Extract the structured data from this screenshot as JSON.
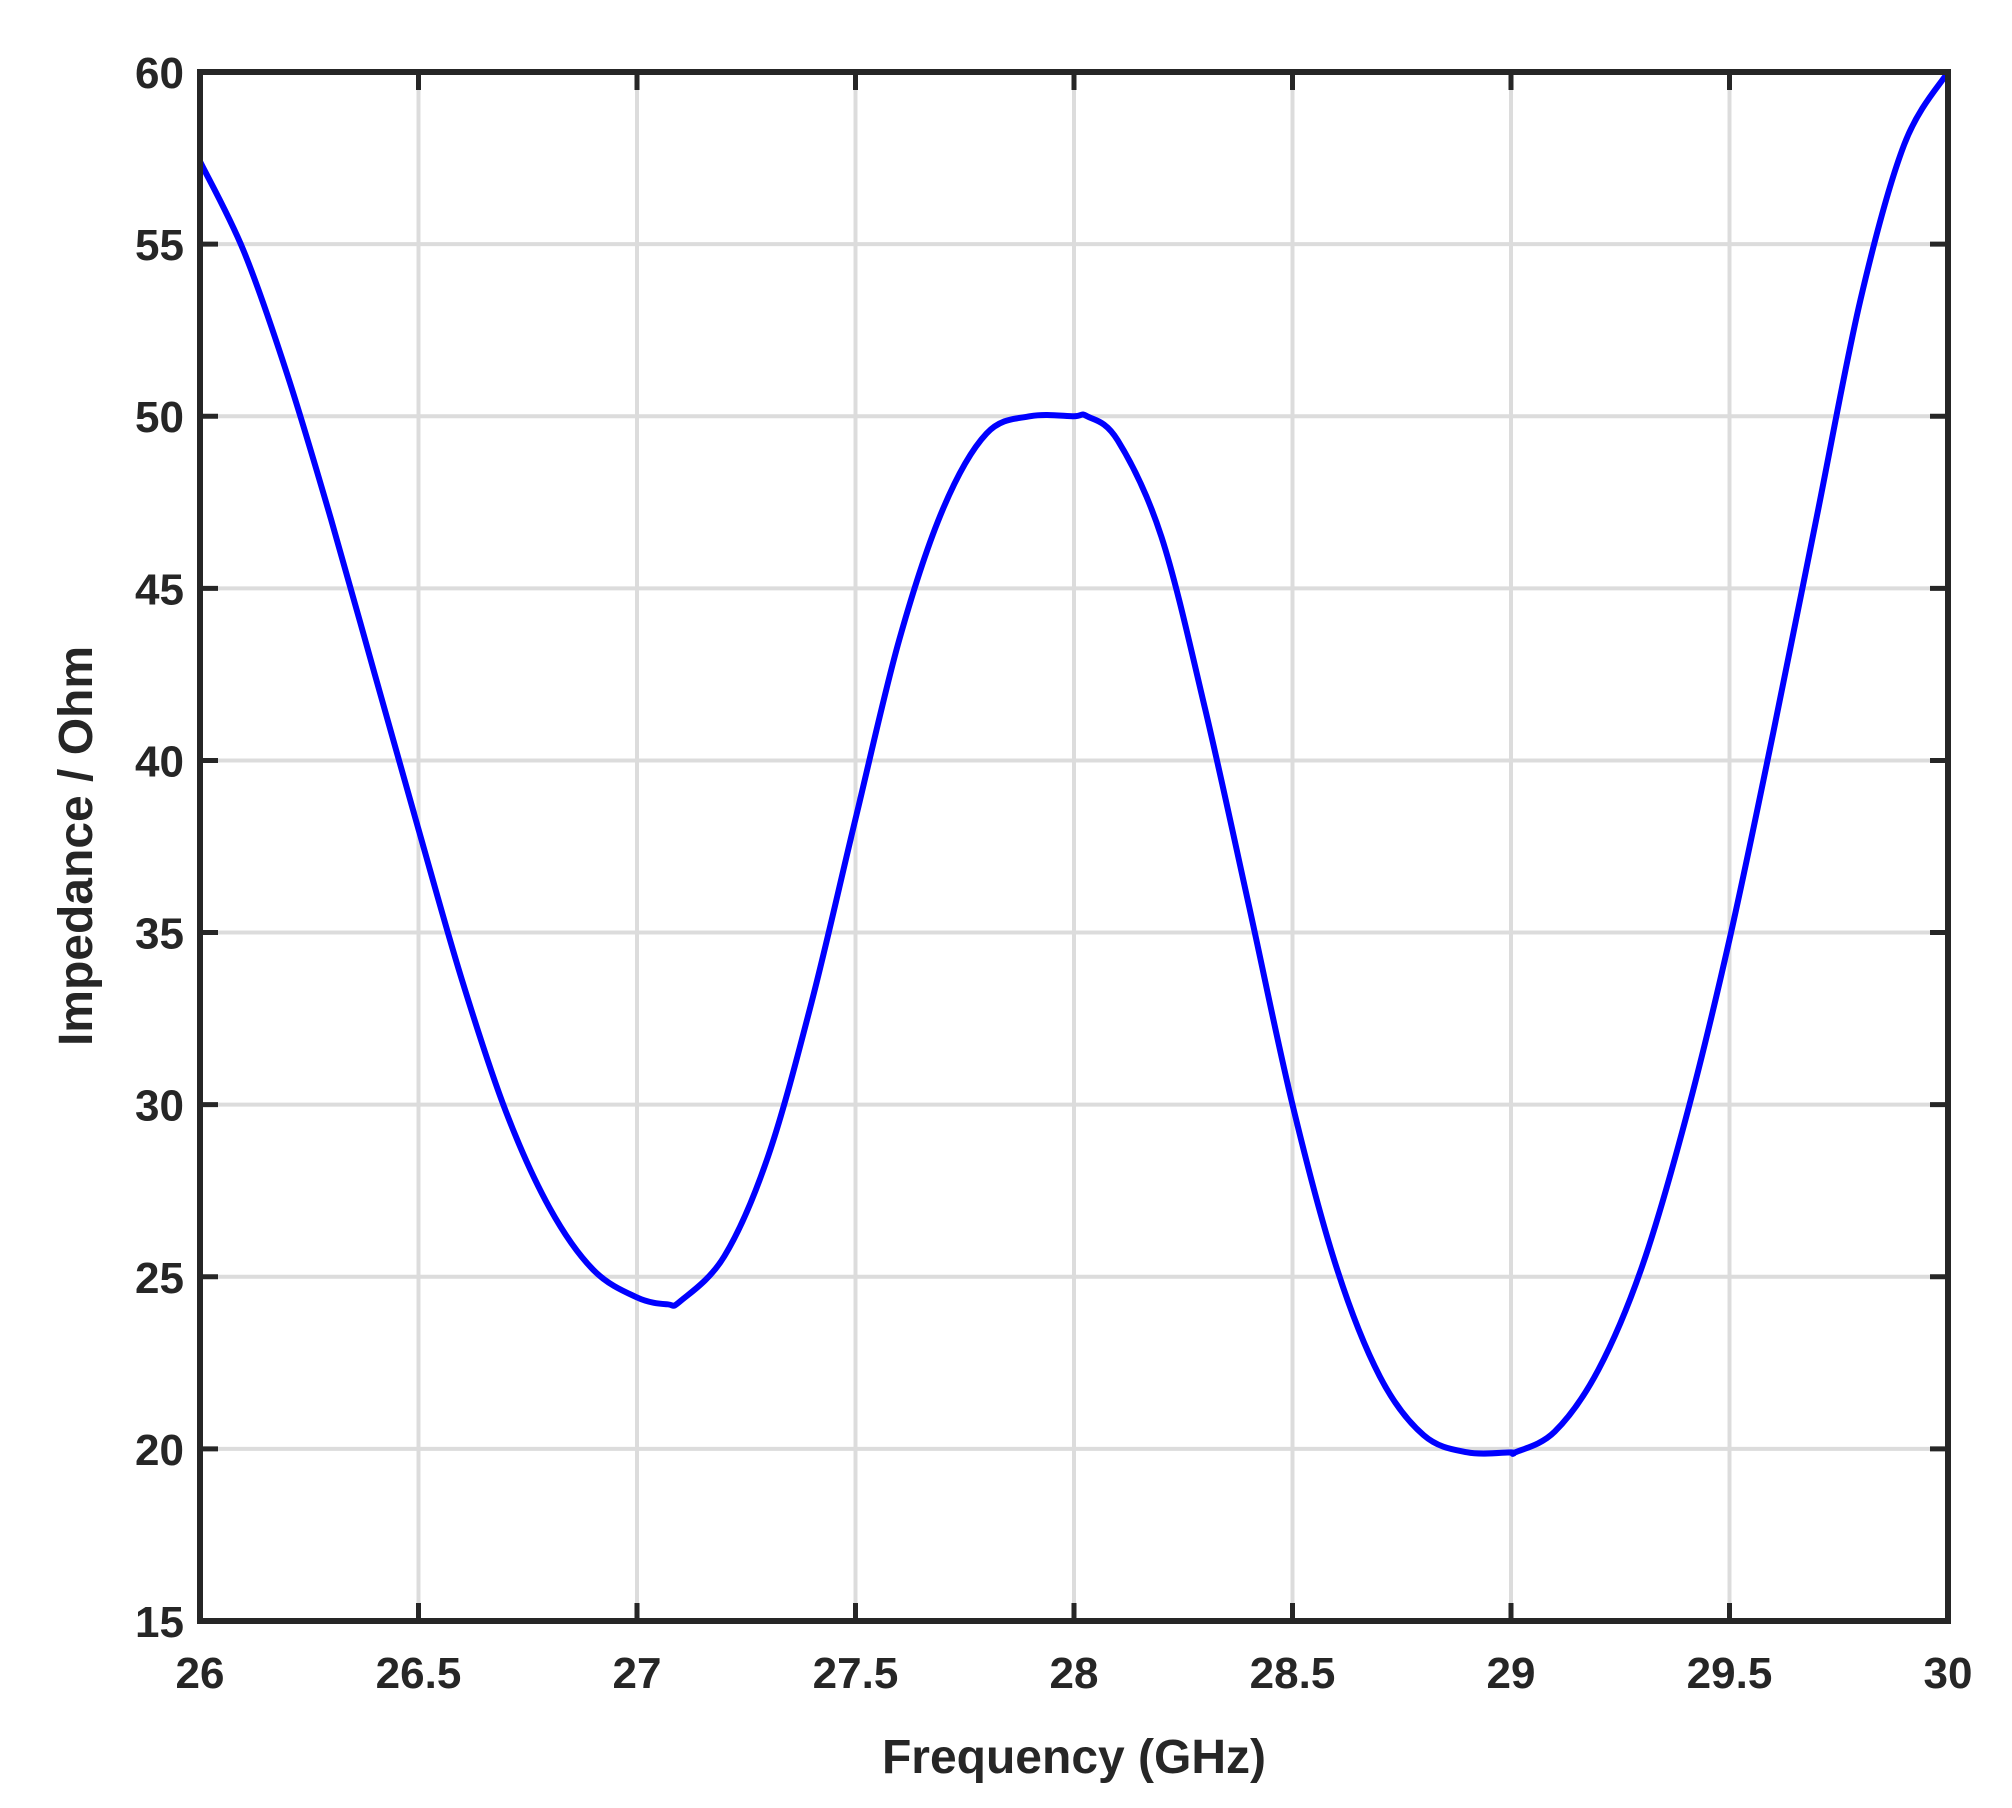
{
  "chart_data": {
    "type": "line",
    "title": "",
    "xlabel": "Frequency (GHz)",
    "ylabel": "Impedance / Ohm",
    "xlim": [
      26,
      30
    ],
    "ylim": [
      15,
      60
    ],
    "xticks": [
      26,
      26.5,
      27,
      27.5,
      28,
      28.5,
      29,
      29.5,
      30
    ],
    "xtick_labels": [
      "26",
      "26.5",
      "27",
      "27.5",
      "28",
      "28.5",
      "29",
      "29.5",
      "30"
    ],
    "yticks": [
      15,
      20,
      25,
      30,
      35,
      40,
      45,
      50,
      55,
      60
    ],
    "ytick_labels": [
      "15",
      "20",
      "25",
      "30",
      "35",
      "40",
      "45",
      "50",
      "55",
      "60"
    ],
    "grid": true,
    "legend": "none",
    "line_color": "#0000ff",
    "series": [
      {
        "x": [
          26.0,
          26.1,
          26.2,
          26.3,
          26.4,
          26.5,
          26.6,
          26.7,
          26.8,
          26.9,
          27.0,
          27.07,
          27.1,
          27.2,
          27.3,
          27.4,
          27.5,
          27.6,
          27.7,
          27.8,
          27.9,
          28.0,
          28.03,
          28.1,
          28.2,
          28.3,
          28.4,
          28.5,
          28.6,
          28.7,
          28.8,
          28.9,
          29.0,
          29.01,
          29.1,
          29.2,
          29.3,
          29.4,
          29.5,
          29.6,
          29.7,
          29.8,
          29.9,
          30.0
        ],
        "y": [
          57.4,
          54.8,
          51.2,
          47.0,
          42.5,
          38.0,
          33.6,
          29.8,
          27.0,
          25.2,
          24.4,
          24.2,
          24.3,
          25.6,
          28.5,
          33.0,
          38.3,
          43.5,
          47.3,
          49.5,
          50.0,
          50.0,
          50.0,
          49.3,
          46.5,
          41.5,
          35.8,
          30.0,
          25.3,
          22.1,
          20.4,
          19.9,
          19.9,
          19.9,
          20.5,
          22.3,
          25.3,
          29.6,
          34.8,
          40.8,
          47.1,
          53.4,
          57.9,
          60.0
        ]
      }
    ]
  }
}
